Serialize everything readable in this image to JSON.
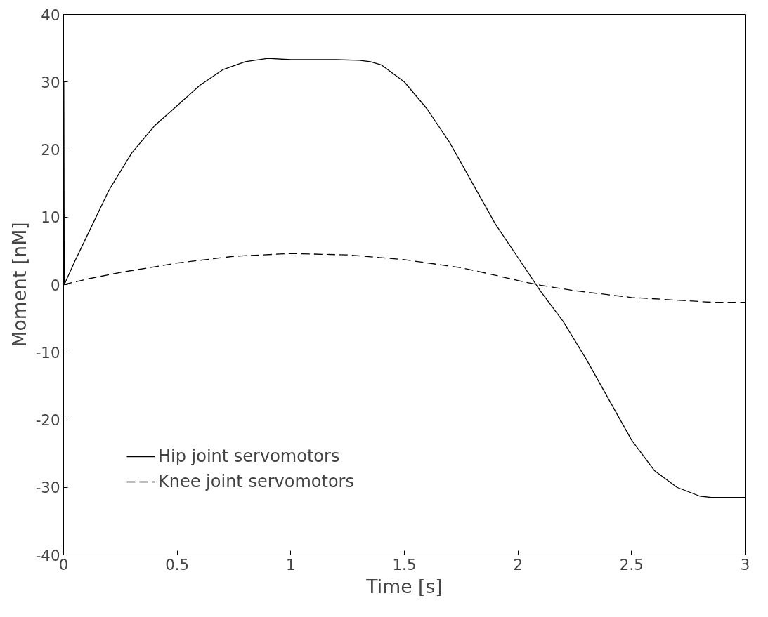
{
  "chart_data": {
    "type": "line",
    "xlabel": "Time [s]",
    "ylabel": "Moment [nM]",
    "xlim": [
      0,
      3
    ],
    "ylim": [
      -40,
      40
    ],
    "xticks": [
      0,
      0.5,
      1,
      1.5,
      2,
      2.5,
      3
    ],
    "yticks": [
      -40,
      -30,
      -20,
      -10,
      0,
      10,
      20,
      30,
      40
    ],
    "grid": false,
    "legend": "bottom left",
    "series": [
      {
        "name": "Hip joint servomotors",
        "color": "#000000",
        "line_style": "solid",
        "x": [
          0,
          0.001,
          0.003,
          0.05,
          0.1,
          0.2,
          0.3,
          0.4,
          0.5,
          0.6,
          0.7,
          0.8,
          0.9,
          1.0,
          1.1,
          1.2,
          1.3,
          1.35,
          1.4,
          1.5,
          1.6,
          1.7,
          1.8,
          1.9,
          2.0,
          2.1,
          2.2,
          2.3,
          2.4,
          2.5,
          2.6,
          2.7,
          2.8,
          2.85,
          2.9,
          3.0
        ],
        "values": [
          0,
          30,
          0,
          3.5,
          7,
          14,
          19.5,
          23.5,
          26.5,
          29.5,
          31.8,
          33,
          33.5,
          33.3,
          33.3,
          33.3,
          33.2,
          33,
          32.5,
          30,
          26,
          21,
          15,
          9,
          4,
          -1,
          -5.5,
          -11,
          -17,
          -23,
          -27.5,
          -30,
          -31.3,
          -31.5,
          -31.5,
          -31.5
        ]
      },
      {
        "name": "Knee joint servomotors",
        "color": "#000000",
        "line_style": "dashed",
        "x": [
          0,
          0.1,
          0.25,
          0.5,
          0.75,
          1.0,
          1.25,
          1.5,
          1.75,
          1.9,
          2.0,
          2.1,
          2.25,
          2.5,
          2.75,
          2.85,
          3.0
        ],
        "values": [
          0,
          0.8,
          1.8,
          3.2,
          4.2,
          4.6,
          4.4,
          3.7,
          2.5,
          1.4,
          0.6,
          -0.1,
          -0.9,
          -1.9,
          -2.4,
          -2.6,
          -2.6
        ]
      }
    ]
  }
}
